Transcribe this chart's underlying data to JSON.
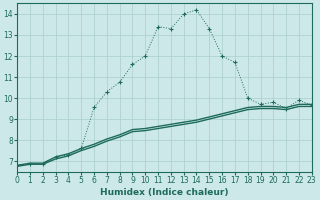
{
  "xlabel": "Humidex (Indice chaleur)",
  "background_color": "#cce8e8",
  "grid_color": "#aacece",
  "line_color": "#1e6b5a",
  "xlim": [
    0,
    23
  ],
  "ylim": [
    6.5,
    14.5
  ],
  "x_ticks": [
    0,
    1,
    2,
    3,
    4,
    5,
    6,
    7,
    8,
    9,
    10,
    11,
    12,
    13,
    14,
    15,
    16,
    17,
    18,
    19,
    20,
    21,
    22,
    23
  ],
  "y_ticks": [
    7,
    8,
    9,
    10,
    11,
    12,
    13,
    14
  ],
  "dotted_x": [
    0,
    1,
    2,
    3,
    4,
    5,
    6,
    7,
    8,
    9,
    10,
    11,
    12,
    13,
    14,
    15,
    16,
    17,
    18,
    19,
    20,
    21,
    22,
    23
  ],
  "dotted_y": [
    6.8,
    6.85,
    6.85,
    7.2,
    7.3,
    7.6,
    9.55,
    10.3,
    10.75,
    11.6,
    12.0,
    13.4,
    13.3,
    14.0,
    14.2,
    13.3,
    12.0,
    11.7,
    10.0,
    9.7,
    9.8,
    9.5,
    9.9,
    9.65
  ],
  "solid1_x": [
    0,
    1,
    2,
    3,
    4,
    5,
    6,
    7,
    8,
    9,
    10,
    11,
    12,
    13,
    14,
    15,
    16,
    17,
    18,
    19,
    20,
    21,
    22,
    23
  ],
  "solid1_y": [
    6.8,
    6.9,
    6.9,
    7.2,
    7.35,
    7.6,
    7.8,
    8.05,
    8.25,
    8.5,
    8.55,
    8.65,
    8.75,
    8.85,
    8.95,
    9.1,
    9.25,
    9.4,
    9.55,
    9.6,
    9.6,
    9.55,
    9.7,
    9.7
  ],
  "solid2_x": [
    0,
    1,
    2,
    3,
    4,
    5,
    6,
    7,
    8,
    9,
    10,
    11,
    12,
    13,
    14,
    15,
    16,
    17,
    18,
    19,
    20,
    21,
    22,
    23
  ],
  "solid2_y": [
    6.75,
    6.85,
    6.85,
    7.1,
    7.25,
    7.5,
    7.7,
    7.95,
    8.15,
    8.4,
    8.45,
    8.55,
    8.65,
    8.75,
    8.85,
    9.0,
    9.15,
    9.3,
    9.45,
    9.5,
    9.5,
    9.45,
    9.6,
    9.6
  ]
}
